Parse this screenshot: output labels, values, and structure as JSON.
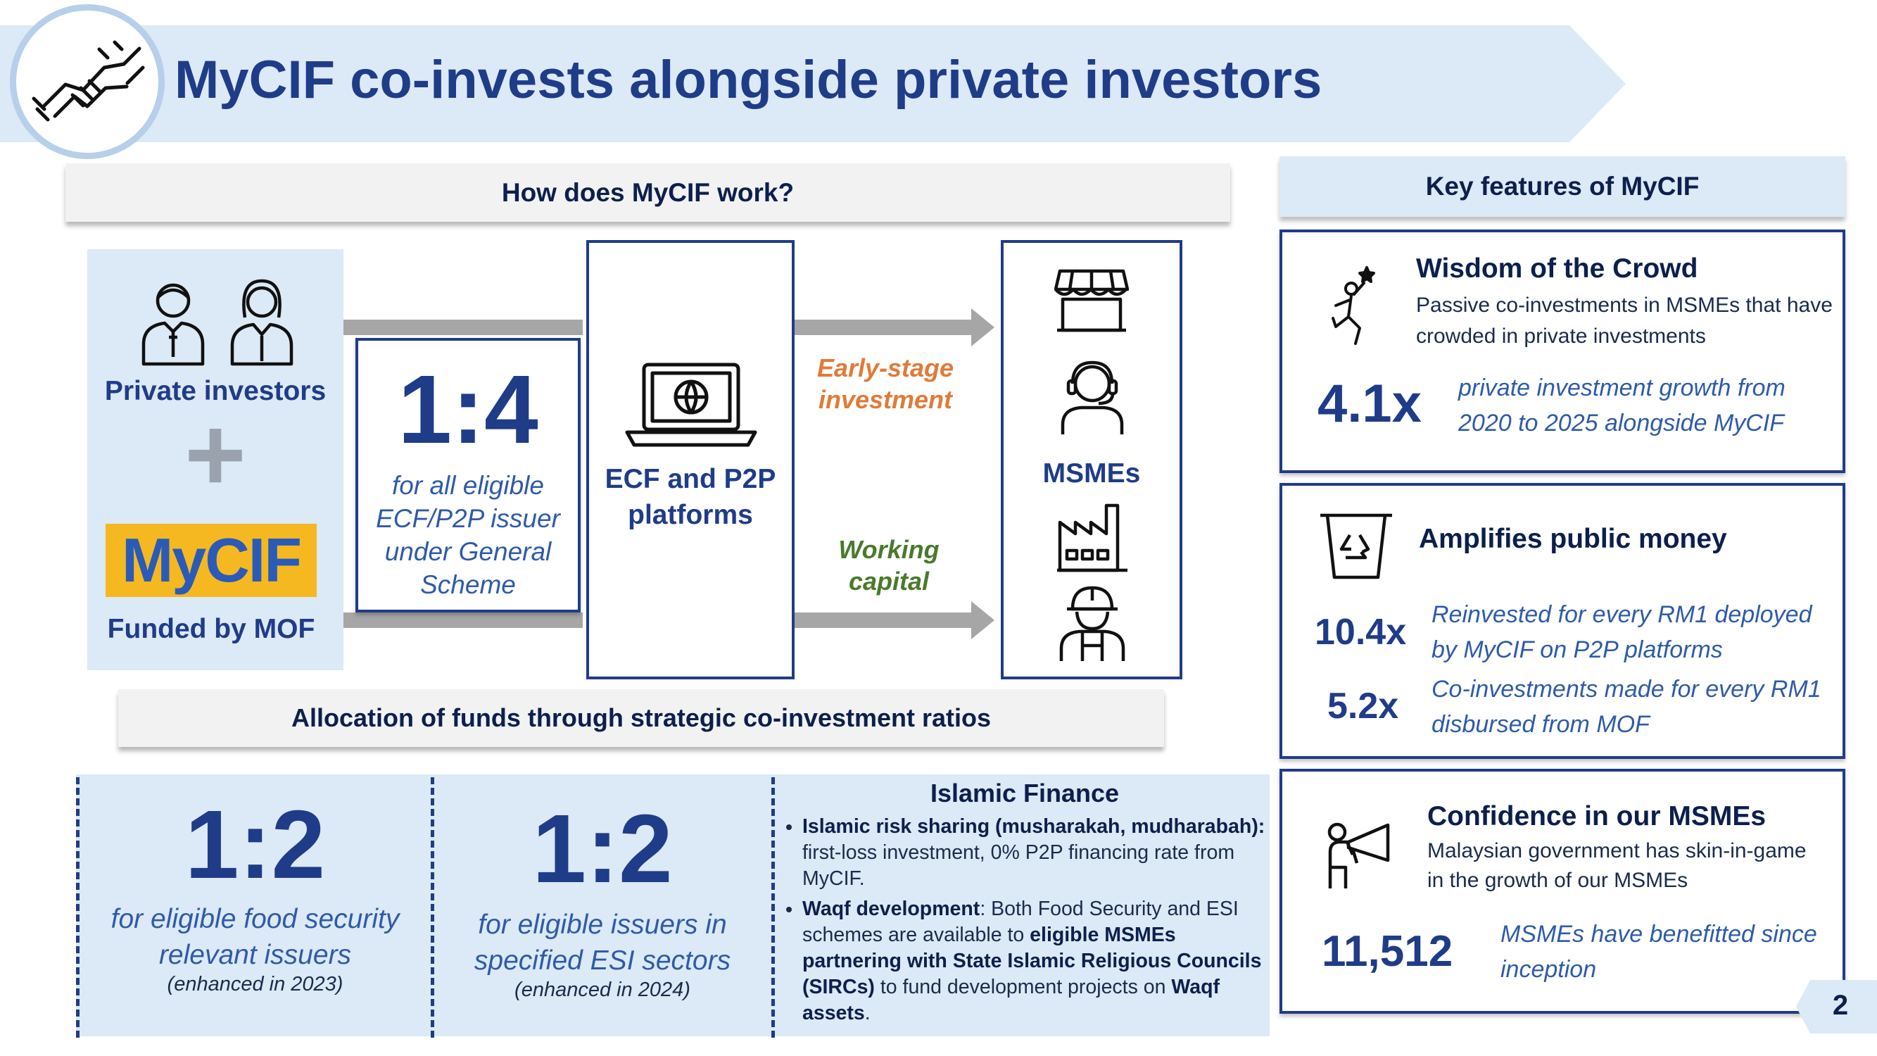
{
  "title": "MyCIF co-invests alongside private investors",
  "how": {
    "header": "How does MyCIF work?",
    "investors_label": "Private investors",
    "plus": "+",
    "mycif_logo": "MyCIF",
    "funded_label": "Funded by MOF",
    "ratio": "1:4",
    "ratio_caption": "for all eligible ECF/P2P issuer under General Scheme",
    "platform_label": "ECF and P2P platforms",
    "flow_top": "Early-stage investment",
    "flow_bottom": "Working capital",
    "msme_label": "MSMEs"
  },
  "allocation": {
    "header": "Allocation of funds through strategic co-investment ratios",
    "food": {
      "ratio": "1:2",
      "caption": "for eligible food security relevant issuers",
      "note": "(enhanced in 2023)"
    },
    "esi": {
      "ratio": "1:2",
      "caption": "for eligible issuers in specified ESI sectors",
      "note": "(enhanced in 2024)"
    },
    "islamic": {
      "title": "Islamic Finance",
      "b1_bold": "Islamic risk sharing (musharakah, mudharabah):",
      "b1_text": " first-loss investment, 0% P2P financing rate from MyCIF.",
      "b2_bold1": "Waqf development",
      "b2_text1": ": Both Food Security and ESI schemes are available to ",
      "b2_bold2": "eligible MSMEs partnering with State Islamic Religious Councils (SIRCs)",
      "b2_text2": " to fund development projects on ",
      "b2_bold3": "Waqf assets",
      "b2_text3": "."
    }
  },
  "features": {
    "header": "Key features of MyCIF",
    "wisdom": {
      "title": "Wisdom of the Crowd",
      "desc": "Passive co-investments in MSMEs that have crowded in private investments",
      "stat": "4.1x",
      "stat_desc": "private investment growth from 2020 to 2025  alongside MyCIF"
    },
    "amplify": {
      "title": "Amplifies public money",
      "stat1": "10.4x",
      "stat1_desc": "Reinvested for every RM1 deployed by MyCIF on P2P platforms",
      "stat2": "5.2x",
      "stat2_desc": "Co-investments made for every RM1 disbursed from MOF"
    },
    "confidence": {
      "title": "Confidence in our MSMEs",
      "desc": "Malaysian government has skin-in-game in the growth of our MSMEs",
      "stat": "11,512",
      "stat_desc": "MSMEs have benefitted since inception"
    }
  },
  "page_number": "2",
  "icons": [
    "handshake-icon",
    "businessman-icon",
    "businesswoman-icon",
    "laptop-globe-icon",
    "storefront-icon",
    "headset-agent-icon",
    "factory-icon",
    "construction-worker-icon",
    "runner-reaching-star-icon",
    "recycle-bin-icon",
    "megaphone-person-icon"
  ],
  "colors": {
    "navy": "#1f3c88",
    "light_blue": "#dce9f6",
    "orange": "#e07b39",
    "green": "#4a7a2c",
    "mycif_yellow": "#f5b820"
  }
}
